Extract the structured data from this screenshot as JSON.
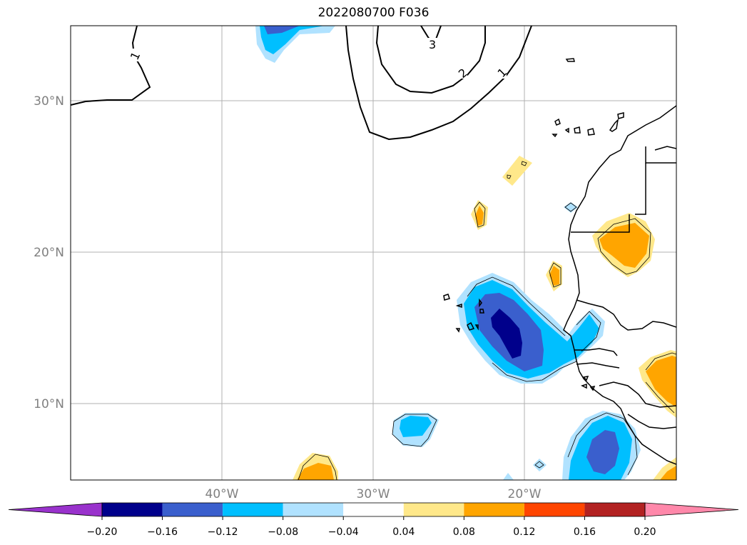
{
  "title": "2022080700 F036",
  "lat_labels": [
    "30°N",
    "20°N",
    "10°N"
  ],
  "lon_labels": [
    "40°W",
    "30°W",
    "20°W"
  ],
  "contour_labels": [
    "1",
    "3",
    "2",
    "1"
  ],
  "colorbar": {
    "ticks": [
      "−0.20",
      "−0.16",
      "−0.12",
      "−0.08",
      "−0.04",
      "0.04",
      "0.08",
      "0.12",
      "0.16",
      "0.20"
    ],
    "colors": [
      "#9932cc",
      "#00008b",
      "#3a5fcd",
      "#00bfff",
      "#b0e2ff",
      "#ffffff",
      "#ffe88a",
      "#ffa500",
      "#ff4500",
      "#b22222",
      "#ff88aa"
    ]
  }
}
